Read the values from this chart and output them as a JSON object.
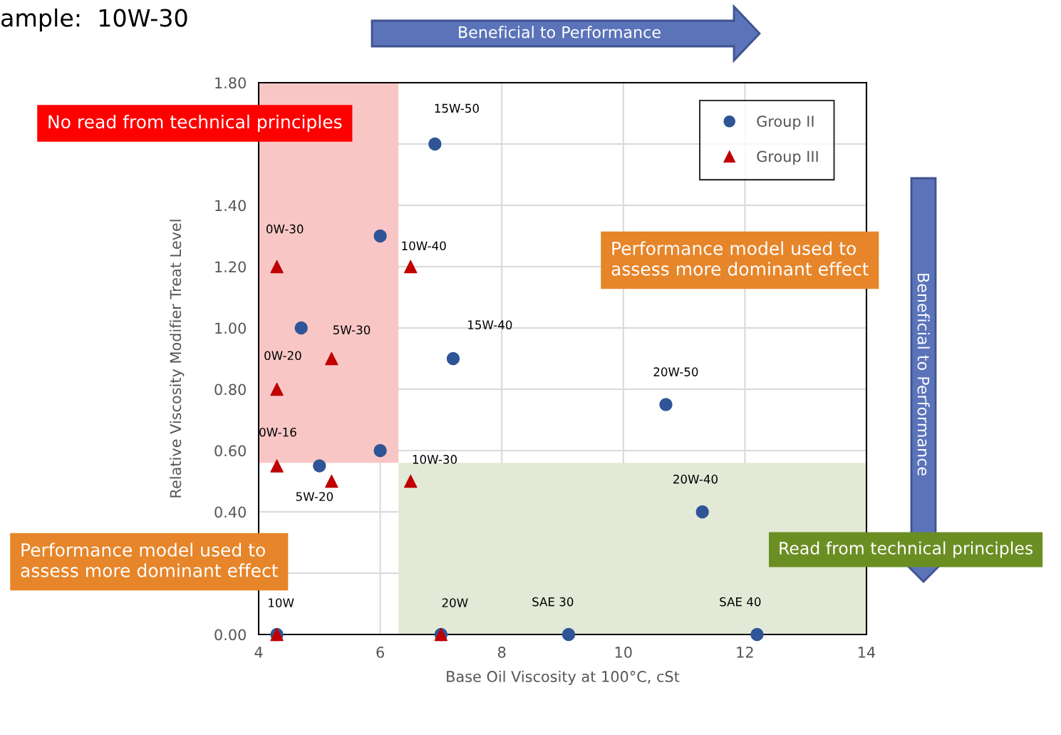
{
  "chart_data": {
    "type": "scatter",
    "title": "ample:  10W-30",
    "xlabel": "Base Oil Viscosity at 100°C, cSt",
    "ylabel": "Relative Viscosity Modifier Treat Level",
    "xlim": [
      4,
      14
    ],
    "xticks": [
      4,
      6,
      8,
      10,
      12,
      14
    ],
    "ylim": [
      0,
      1.8
    ],
    "yticks": [
      {
        "value": 0,
        "label": "0.00"
      },
      {
        "value": 0.2,
        "label": null
      },
      {
        "value": 0.4,
        "label": "0.40"
      },
      {
        "value": 0.6,
        "label": "0.60"
      },
      {
        "value": 0.8,
        "label": "0.80"
      },
      {
        "value": 1.0,
        "label": "1.00"
      },
      {
        "value": 1.2,
        "label": "1.20"
      },
      {
        "value": 1.4,
        "label": "1.40"
      },
      {
        "value": 1.6,
        "label": null
      },
      {
        "value": 1.8,
        "label": "1.80"
      }
    ],
    "grid": true,
    "legend": "top right",
    "series": [
      {
        "name": "Group II",
        "color": "#2f5597",
        "marker": "circle",
        "x": [
          6.9,
          6.0,
          4.7,
          7.2,
          10.7,
          6.0,
          5.0,
          11.3,
          4.3,
          7.0,
          9.1,
          12.2
        ],
        "values": [
          1.6,
          1.3,
          1.0,
          0.9,
          0.75,
          0.6,
          0.55,
          0.4,
          0,
          0,
          0,
          0
        ]
      },
      {
        "name": "Group III",
        "color": "#c00000",
        "marker": "triangle",
        "x": [
          4.3,
          6.5,
          5.2,
          4.3,
          4.3,
          6.5,
          5.2,
          4.3,
          7.0
        ],
        "values": [
          1.2,
          1.2,
          0.9,
          0.8,
          0.55,
          0.5,
          0.5,
          0,
          0
        ]
      }
    ],
    "annotations": [
      {
        "text": "15W-50",
        "x": 6.9,
        "y": 1.6
      },
      {
        "text": "10W-40",
        "x": 6.0,
        "y": 1.3
      },
      {
        "text": "0W-30",
        "x": 4.3,
        "y": 1.2
      },
      {
        "text": "5W-30",
        "x": 4.7,
        "y": 1.0
      },
      {
        "text": "15W-40",
        "x": 7.2,
        "y": 0.9
      },
      {
        "text": "20W-50",
        "x": 10.7,
        "y": 0.75
      },
      {
        "text": "0W-20",
        "x": 4.3,
        "y": 0.8
      },
      {
        "text": "0W-16",
        "x": 4.3,
        "y": 0.55
      },
      {
        "text": "10W-30",
        "x": 6.0,
        "y": 0.6
      },
      {
        "text": "5W-20",
        "x": 5.0,
        "y": 0.55
      },
      {
        "text": "20W-40",
        "x": 11.3,
        "y": 0.4
      },
      {
        "text": "10W",
        "x": 4.3,
        "y": 0
      },
      {
        "text": "20W",
        "x": 7.0,
        "y": 0
      },
      {
        "text": "SAE 30",
        "x": 9.1,
        "y": 0
      },
      {
        "text": "SAE 40",
        "x": 12.2,
        "y": 0
      },
      "No read from technical principles",
      "Performance model used to\nassess more dominant effect",
      "Performance model used to\nassess more dominant effect",
      "Read from technical principles",
      "Beneficial to Performance",
      "Beneficial to Performance"
    ]
  }
}
